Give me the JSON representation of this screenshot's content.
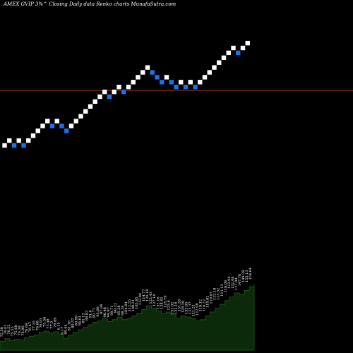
{
  "title": "AMEX  GVIP 3%^  Closing Daily data  Renko  charts MunafaSutra.com",
  "colors": {
    "background": "#000000",
    "up_brick": "#ffffff",
    "down_brick": "#1e6fe8",
    "ref_line": "#b03a1a",
    "volume_fill": "#0a2a0a",
    "volume_line": "#1f5a1f",
    "text": "#ffffff"
  },
  "chart_data": {
    "type": "renko",
    "title": "AMEX  GVIP 3%^  Closing Daily data  Renko  charts MunafaSutra.com",
    "bricks": [
      {
        "dir": "up",
        "level": 0
      },
      {
        "dir": "up",
        "level": 1
      },
      {
        "dir": "down",
        "level": 0
      },
      {
        "dir": "up",
        "level": 1
      },
      {
        "dir": "down",
        "level": 0
      },
      {
        "dir": "up",
        "level": 1
      },
      {
        "dir": "up",
        "level": 2
      },
      {
        "dir": "up",
        "level": 3
      },
      {
        "dir": "up",
        "level": 4
      },
      {
        "dir": "up",
        "level": 5
      },
      {
        "dir": "down",
        "level": 4
      },
      {
        "dir": "up",
        "level": 5
      },
      {
        "dir": "down",
        "level": 4
      },
      {
        "dir": "down",
        "level": 3
      },
      {
        "dir": "up",
        "level": 4
      },
      {
        "dir": "up",
        "level": 5
      },
      {
        "dir": "up",
        "level": 6
      },
      {
        "dir": "up",
        "level": 7
      },
      {
        "dir": "up",
        "level": 8
      },
      {
        "dir": "up",
        "level": 9
      },
      {
        "dir": "up",
        "level": 10
      },
      {
        "dir": "up",
        "level": 11
      },
      {
        "dir": "down",
        "level": 10
      },
      {
        "dir": "up",
        "level": 11
      },
      {
        "dir": "up",
        "level": 12
      },
      {
        "dir": "down",
        "level": 11
      },
      {
        "dir": "up",
        "level": 12
      },
      {
        "dir": "up",
        "level": 13
      },
      {
        "dir": "up",
        "level": 14
      },
      {
        "dir": "up",
        "level": 15
      },
      {
        "dir": "up",
        "level": 16
      },
      {
        "dir": "down",
        "level": 15
      },
      {
        "dir": "down",
        "level": 14
      },
      {
        "dir": "down",
        "level": 13
      },
      {
        "dir": "up",
        "level": 14
      },
      {
        "dir": "down",
        "level": 13
      },
      {
        "dir": "down",
        "level": 12
      },
      {
        "dir": "up",
        "level": 13
      },
      {
        "dir": "down",
        "level": 12
      },
      {
        "dir": "up",
        "level": 13
      },
      {
        "dir": "down",
        "level": 12
      },
      {
        "dir": "up",
        "level": 13
      },
      {
        "dir": "up",
        "level": 14
      },
      {
        "dir": "up",
        "level": 15
      },
      {
        "dir": "up",
        "level": 16
      },
      {
        "dir": "up",
        "level": 17
      },
      {
        "dir": "up",
        "level": 18
      },
      {
        "dir": "up",
        "level": 19
      },
      {
        "dir": "up",
        "level": 20
      },
      {
        "dir": "down",
        "level": 19
      },
      {
        "dir": "up",
        "level": 20
      },
      {
        "dir": "up",
        "level": 21
      }
    ],
    "reference_level": 11.3,
    "volume": [
      14,
      18,
      15,
      17,
      16,
      20,
      22,
      24,
      28,
      30,
      27,
      29,
      25,
      18,
      24,
      28,
      32,
      36,
      40,
      44,
      46,
      50,
      45,
      48,
      52,
      48,
      50,
      54,
      58,
      64,
      70,
      66,
      62,
      58,
      60,
      56,
      50,
      54,
      52,
      50,
      46,
      48,
      54,
      60,
      66,
      72,
      78,
      84,
      90,
      88,
      94,
      100,
      104
    ]
  },
  "volume_labels": [
    "75.58",
    "76.01",
    "76.52",
    "75.55",
    "75.68",
    "76.38",
    "76.89",
    "76.68",
    "76.47",
    "77.15",
    "76.68",
    "76.93",
    "75.56",
    "73.48",
    "77.5",
    "79.69",
    "6.15",
    "4.17",
    "80.44",
    "81.16",
    "80.57",
    "80.99",
    "84.61",
    "81.13",
    "88.83",
    "91.6",
    "90.71",
    "93.06",
    "97.84",
    "96.48",
    "94.97",
    "99.71",
    "99.22",
    "95.38",
    "98.38",
    "104.84",
    "112.55",
    "108.21",
    "105.85",
    "113.84",
    "114.77",
    "120.18",
    "122.43",
    "127.14",
    "132.16",
    "128.91",
    "125.79",
    "123.6",
    "131.02",
    "132.16",
    "131.28",
    "128.56",
    "133.05",
    "123.37",
    "121.21",
    "112.08",
    "119.12",
    "110.22",
    "119.92",
    "119.07",
    "112.18",
    "113.52",
    "111.13",
    "118.08",
    "123.94",
    "132.08",
    "117.94",
    "147.76",
    "149.39",
    "153.13",
    "154.64"
  ]
}
